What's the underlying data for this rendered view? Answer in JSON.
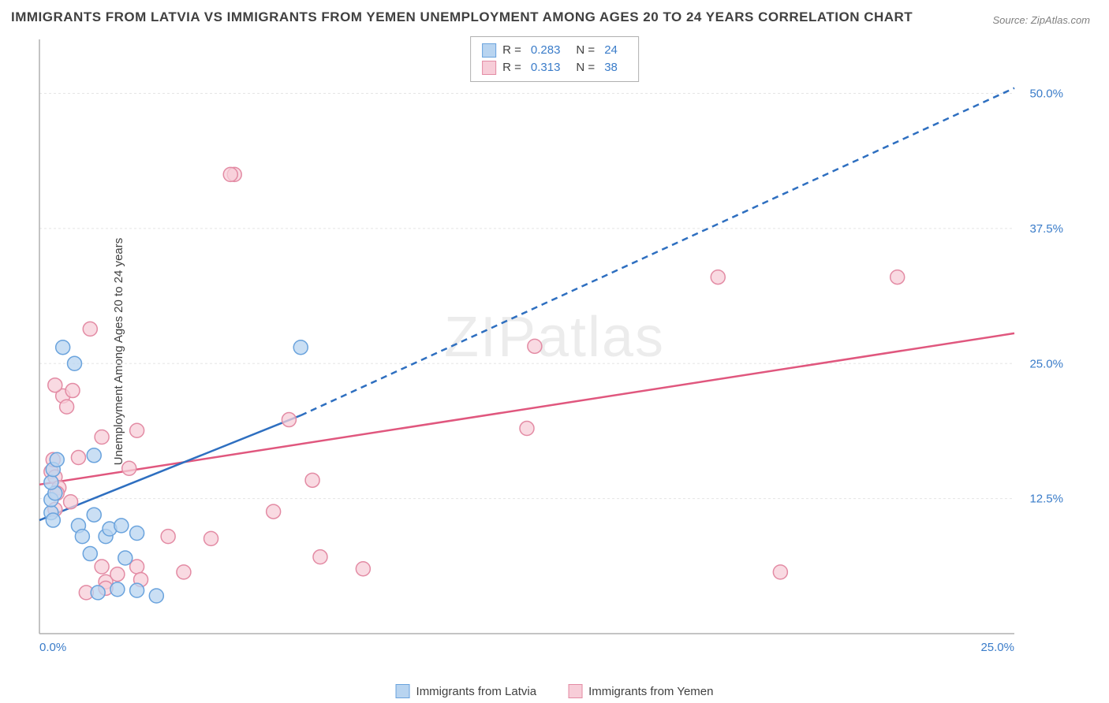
{
  "title": "IMMIGRANTS FROM LATVIA VS IMMIGRANTS FROM YEMEN UNEMPLOYMENT AMONG AGES 20 TO 24 YEARS CORRELATION CHART",
  "source": "Source: ZipAtlas.com",
  "watermark": "ZIPatlas",
  "ylabel": "Unemployment Among Ages 20 to 24 years",
  "chart": {
    "type": "scatter",
    "xlim": [
      0,
      25
    ],
    "ylim": [
      0,
      55
    ],
    "x_ticks": [
      {
        "v": 0,
        "label": "0.0%"
      },
      {
        "v": 25,
        "label": "25.0%"
      }
    ],
    "y_ticks": [
      {
        "v": 12.5,
        "label": "12.5%"
      },
      {
        "v": 25,
        "label": "25.0%"
      },
      {
        "v": 37.5,
        "label": "37.5%"
      },
      {
        "v": 50,
        "label": "50.0%"
      }
    ],
    "grid_color": "#e5e5e5",
    "axis_color": "#b0b0b0",
    "background_color": "#ffffff",
    "tick_label_color": "#3a7cc9",
    "series": [
      {
        "name": "Immigrants from Latvia",
        "key": "latvia",
        "marker_color_fill": "#b8d4f0",
        "marker_color_stroke": "#6aa3dd",
        "marker_radius": 9,
        "line_color": "#2e6fc0",
        "line_width": 2.5,
        "R": "0.283",
        "N": "24",
        "trend_solid": {
          "x1": 0,
          "y1": 10.5,
          "x2": 6.7,
          "y2": 20.2
        },
        "trend_dash": {
          "x1": 6.7,
          "y1": 20.2,
          "x2": 25,
          "y2": 50.5
        },
        "points": [
          {
            "x": 0.3,
            "y": 11.2
          },
          {
            "x": 0.3,
            "y": 12.4
          },
          {
            "x": 0.35,
            "y": 10.5
          },
          {
            "x": 0.4,
            "y": 13.0
          },
          {
            "x": 0.3,
            "y": 14.0
          },
          {
            "x": 0.35,
            "y": 15.2
          },
          {
            "x": 0.45,
            "y": 16.1
          },
          {
            "x": 0.6,
            "y": 26.5
          },
          {
            "x": 0.9,
            "y": 25.0
          },
          {
            "x": 1.0,
            "y": 10.0
          },
          {
            "x": 1.1,
            "y": 9.0
          },
          {
            "x": 1.4,
            "y": 11.0
          },
          {
            "x": 1.4,
            "y": 16.5
          },
          {
            "x": 1.7,
            "y": 9.0
          },
          {
            "x": 1.8,
            "y": 9.7
          },
          {
            "x": 2.1,
            "y": 10.0
          },
          {
            "x": 1.3,
            "y": 7.4
          },
          {
            "x": 2.2,
            "y": 7.0
          },
          {
            "x": 2.5,
            "y": 4.0
          },
          {
            "x": 2.0,
            "y": 4.1
          },
          {
            "x": 1.5,
            "y": 3.8
          },
          {
            "x": 2.5,
            "y": 9.3
          },
          {
            "x": 3.0,
            "y": 3.5
          },
          {
            "x": 6.7,
            "y": 26.5
          }
        ]
      },
      {
        "name": "Immigrants from Yemen",
        "key": "yemen",
        "marker_color_fill": "#f7cdd8",
        "marker_color_stroke": "#e38ba4",
        "marker_radius": 9,
        "line_color": "#e0577e",
        "line_width": 2.5,
        "R": "0.313",
        "N": "38",
        "trend_solid": {
          "x1": 0,
          "y1": 13.8,
          "x2": 25,
          "y2": 27.8
        },
        "trend_dash": null,
        "points": [
          {
            "x": 0.3,
            "y": 15.0
          },
          {
            "x": 0.35,
            "y": 16.1
          },
          {
            "x": 0.4,
            "y": 14.5
          },
          {
            "x": 0.5,
            "y": 13.5
          },
          {
            "x": 0.6,
            "y": 22.0
          },
          {
            "x": 0.7,
            "y": 21.0
          },
          {
            "x": 0.8,
            "y": 12.2
          },
          {
            "x": 0.85,
            "y": 22.5
          },
          {
            "x": 1.0,
            "y": 16.3
          },
          {
            "x": 1.3,
            "y": 28.2
          },
          {
            "x": 1.6,
            "y": 18.2
          },
          {
            "x": 1.6,
            "y": 6.2
          },
          {
            "x": 1.7,
            "y": 4.8
          },
          {
            "x": 1.7,
            "y": 4.2
          },
          {
            "x": 1.2,
            "y": 3.8
          },
          {
            "x": 2.0,
            "y": 5.5
          },
          {
            "x": 2.5,
            "y": 6.2
          },
          {
            "x": 2.5,
            "y": 18.8
          },
          {
            "x": 2.3,
            "y": 15.3
          },
          {
            "x": 2.6,
            "y": 5.0
          },
          {
            "x": 3.3,
            "y": 9.0
          },
          {
            "x": 3.7,
            "y": 5.7
          },
          {
            "x": 4.4,
            "y": 8.8
          },
          {
            "x": 5.0,
            "y": 42.5
          },
          {
            "x": 4.9,
            "y": 42.5
          },
          {
            "x": 6.0,
            "y": 11.3
          },
          {
            "x": 6.4,
            "y": 19.8
          },
          {
            "x": 7.2,
            "y": 7.1
          },
          {
            "x": 7.0,
            "y": 14.2
          },
          {
            "x": 8.3,
            "y": 6.0
          },
          {
            "x": 12.5,
            "y": 19.0
          },
          {
            "x": 12.7,
            "y": 26.6
          },
          {
            "x": 17.4,
            "y": 33.0
          },
          {
            "x": 19.0,
            "y": 5.7
          },
          {
            "x": 22.0,
            "y": 33.0
          },
          {
            "x": 0.4,
            "y": 11.5
          },
          {
            "x": 0.45,
            "y": 13.0
          },
          {
            "x": 0.4,
            "y": 23.0
          }
        ]
      }
    ],
    "legend_top": {
      "R_label": "R =",
      "N_label": "N ="
    },
    "legend_bottom": [
      "Immigrants from Latvia",
      "Immigrants from Yemen"
    ]
  }
}
